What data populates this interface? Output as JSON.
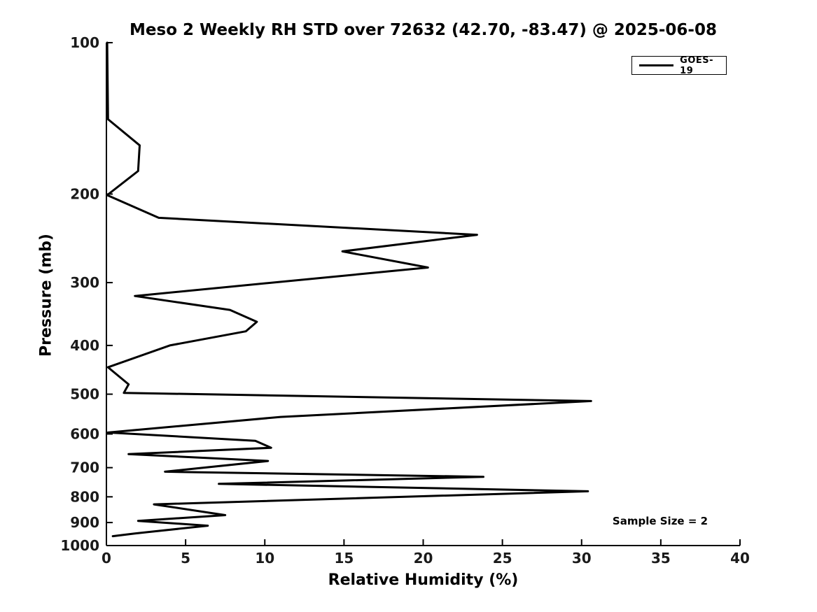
{
  "chart_data": {
    "type": "line",
    "title": "Meso 2 Weekly RH STD over 72632 (42.70, -83.47) @ 2025-06-08",
    "xlabel": "Relative Humidity (%)",
    "ylabel": "Pressure (mb)",
    "x_scale": "linear",
    "xlim": [
      0,
      40
    ],
    "x_ticks": [
      0,
      5,
      10,
      15,
      20,
      25,
      30,
      35,
      40
    ],
    "y_scale": "log",
    "y_inverted": true,
    "ylim": [
      100,
      1000
    ],
    "y_ticks": [
      100,
      200,
      300,
      400,
      500,
      600,
      700,
      800,
      900,
      1000
    ],
    "grid": false,
    "frame_color": "#000000",
    "tick_label_color": "#1a1a1a",
    "legend": {
      "position": "upper right",
      "entries": [
        {
          "label": "GOES-19",
          "color": "#000000"
        }
      ]
    },
    "annotation": "Sample Size = 2",
    "series": [
      {
        "name": "GOES-19",
        "color": "#000000",
        "line_width": 3,
        "points_rh_pressure": [
          [
            0.05,
            100
          ],
          [
            0.1,
            142
          ],
          [
            2.1,
            160
          ],
          [
            2.0,
            180
          ],
          [
            0.05,
            201
          ],
          [
            3.3,
            223
          ],
          [
            23.4,
            241
          ],
          [
            14.9,
            260
          ],
          [
            20.3,
            280
          ],
          [
            1.8,
            319
          ],
          [
            7.8,
            340
          ],
          [
            9.5,
            359
          ],
          [
            8.8,
            375
          ],
          [
            4.0,
            400
          ],
          [
            0.1,
            442
          ],
          [
            1.4,
            478
          ],
          [
            1.1,
            497
          ],
          [
            30.6,
            516
          ],
          [
            11.0,
            555
          ],
          [
            0.1,
            596
          ],
          [
            9.4,
            619
          ],
          [
            10.4,
            639
          ],
          [
            1.4,
            658
          ],
          [
            10.2,
            679
          ],
          [
            3.7,
            713
          ],
          [
            23.8,
            730
          ],
          [
            7.1,
            754
          ],
          [
            30.4,
            780
          ],
          [
            3.0,
            828
          ],
          [
            7.5,
            870
          ],
          [
            2.0,
            893
          ],
          [
            6.4,
            913
          ],
          [
            1.8,
            946
          ],
          [
            0.4,
            958
          ]
        ]
      }
    ]
  },
  "layout_labels": {
    "note": ""
  }
}
